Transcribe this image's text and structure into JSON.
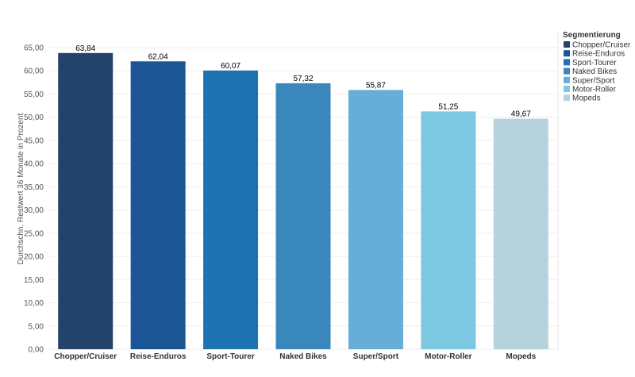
{
  "chart_data": {
    "type": "bar",
    "ylabel": "Durchschn. Restwert 36 Monate in Prozent",
    "xlabel": "",
    "title": "",
    "ylim": [
      0,
      65
    ],
    "yticks": [
      "0,00",
      "5,00",
      "10,00",
      "15,00",
      "20,00",
      "25,00",
      "30,00",
      "35,00",
      "40,00",
      "45,00",
      "50,00",
      "55,00",
      "60,00",
      "65,00"
    ],
    "grid": "horizontal",
    "legend_position": "right",
    "legend_title": "Segmentierung",
    "categories": [
      "Chopper/Cruiser",
      "Reise-Enduros",
      "Sport-Tourer",
      "Naked Bikes",
      "Super/Sport",
      "Motor-Roller",
      "Mopeds"
    ],
    "values": [
      63.84,
      62.04,
      60.07,
      57.32,
      55.87,
      51.25,
      49.67
    ],
    "value_labels": [
      "63,84",
      "62,04",
      "60,07",
      "57,32",
      "55,87",
      "51,25",
      "49,67"
    ],
    "colors": [
      "#24436a",
      "#1c5596",
      "#1f73b2",
      "#3a88bb",
      "#66add8",
      "#7cc8e3",
      "#b5d3dc"
    ]
  }
}
